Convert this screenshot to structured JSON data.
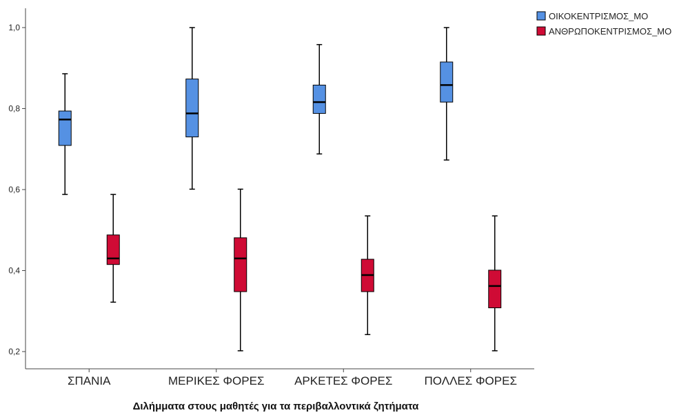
{
  "chart_data": {
    "type": "boxplot",
    "title": "",
    "xlabel": "Διλήμματα στους μαθητές για τα περιβαλλοντικά ζητήματα",
    "ylabel": "",
    "ylim": [
      0.18,
      1.05
    ],
    "yticks": [
      "0,2",
      "0,4",
      "0,6",
      "0,8",
      "1,0"
    ],
    "ytick_values": [
      0.2,
      0.4,
      0.6,
      0.8,
      1.0
    ],
    "grid": false,
    "legend_position": "top-right",
    "categories": [
      "ΣΠΑΝΙΑ",
      "ΜΕΡΙΚΕΣ ΦΟΡΕΣ",
      "ΑΡΚΕΤΕΣ ΦΟΡΕΣ",
      "ΠΟΛΛΕΣ ΦΟΡΕΣ"
    ],
    "series": [
      {
        "name": "ΟΙΚΟΚΕΝΤΡΙΣΜΟΣ_ΜΟ",
        "color": "#5591e3",
        "boxes": [
          {
            "min": 0.588,
            "q1": 0.709,
            "median": 0.773,
            "q3": 0.794,
            "max": 0.886
          },
          {
            "min": 0.601,
            "q1": 0.73,
            "median": 0.788,
            "q3": 0.873,
            "max": 1.0
          },
          {
            "min": 0.688,
            "q1": 0.788,
            "median": 0.816,
            "q3": 0.858,
            "max": 0.958
          },
          {
            "min": 0.673,
            "q1": 0.816,
            "median": 0.858,
            "q3": 0.915,
            "max": 1.0
          }
        ]
      },
      {
        "name": "ΑΝΘΡΩΠΟΚΕΝΤΡΙΣΜΟΣ_ΜΟ",
        "color": "#cf0b35",
        "boxes": [
          {
            "min": 0.322,
            "q1": 0.415,
            "median": 0.43,
            "q3": 0.488,
            "max": 0.588
          },
          {
            "min": 0.202,
            "q1": 0.348,
            "median": 0.43,
            "q3": 0.481,
            "max": 0.601
          },
          {
            "min": 0.242,
            "q1": 0.348,
            "median": 0.389,
            "q3": 0.428,
            "max": 0.535
          },
          {
            "min": 0.202,
            "q1": 0.308,
            "median": 0.362,
            "q3": 0.401,
            "max": 0.535
          }
        ]
      }
    ]
  }
}
